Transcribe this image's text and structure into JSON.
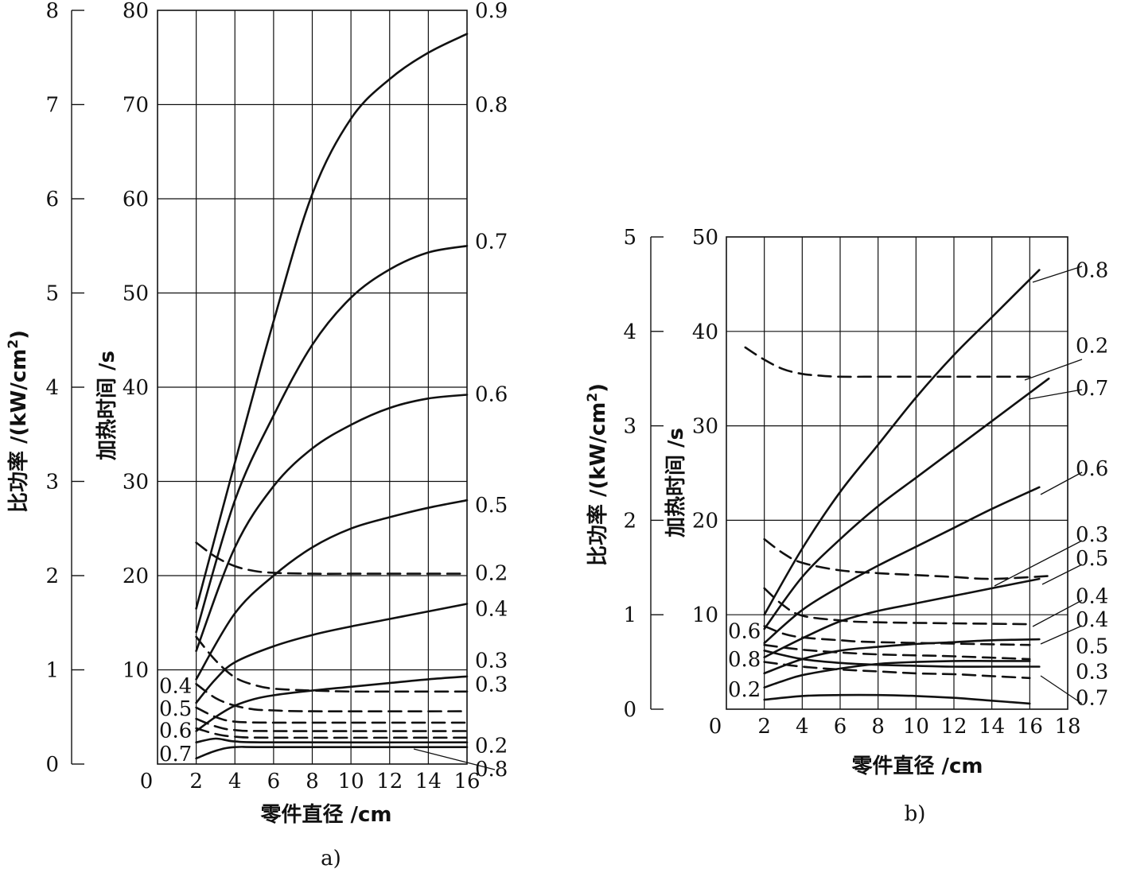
{
  "chart_data": [
    {
      "type": "line",
      "caption": "a)",
      "xlabel": "零件直径 /cm",
      "ylabel_outer": "比功率 /(kW/cm",
      "ylabel_outer_sup": "2",
      "ylabel_outer_close": ")",
      "ylabel_inner": "加热时间 /s",
      "x_origin_label": "0",
      "x_ticks": [
        2,
        4,
        6,
        8,
        10,
        12,
        14,
        16
      ],
      "xlim": [
        0,
        16
      ],
      "y_outer_ticks": [
        0,
        1,
        2,
        3,
        4,
        5,
        6,
        7,
        8
      ],
      "y_outer_lim": [
        0,
        8
      ],
      "y_inner_ticks": [
        10,
        20,
        30,
        40,
        50,
        60,
        70,
        80
      ],
      "y_inner_lim": [
        0,
        80
      ],
      "grid": true,
      "series": [
        {
          "name": "0.8",
          "style": "solid",
          "x": [
            2,
            4,
            6,
            8,
            10,
            12,
            14,
            16
          ],
          "y": [
            16.5,
            32,
            47,
            60.5,
            68.5,
            72.7,
            75.5,
            77.5
          ]
        },
        {
          "name": "0.7",
          "style": "solid",
          "x": [
            2,
            4,
            6,
            8,
            10,
            12,
            14,
            16
          ],
          "y": [
            14,
            28,
            37,
            44.5,
            49.5,
            52.5,
            54.3,
            55
          ]
        },
        {
          "name": "0.6",
          "style": "solid",
          "x": [
            2,
            4,
            6,
            8,
            10,
            12,
            14,
            16
          ],
          "y": [
            12,
            23,
            29.5,
            33.5,
            36,
            37.8,
            38.8,
            39.2
          ]
        },
        {
          "name": "0.5",
          "style": "solid",
          "x": [
            2,
            4,
            6,
            8,
            10,
            12,
            14,
            16
          ],
          "y": [
            9,
            16,
            20,
            23,
            25,
            26.2,
            27.2,
            28
          ]
        },
        {
          "name": "0.2",
          "style": "dashed",
          "x": [
            2,
            3,
            4,
            5,
            6,
            8,
            10,
            12,
            14,
            16
          ],
          "y": [
            23.5,
            22,
            21,
            20.5,
            20.3,
            20.2,
            20.2,
            20.2,
            20.2,
            20.2
          ]
        },
        {
          "name": "0.4",
          "style": "solid",
          "x": [
            2,
            3,
            4,
            6,
            8,
            10,
            12,
            14,
            16
          ],
          "y": [
            6.5,
            9,
            10.8,
            12.5,
            13.7,
            14.6,
            15.4,
            16.2,
            17
          ]
        },
        {
          "name": "0.3",
          "style": "dashed",
          "x": [
            2,
            3,
            4,
            5,
            6,
            8,
            10,
            12,
            14,
            16
          ],
          "y": [
            13.5,
            11,
            9.2,
            8.4,
            8,
            7.8,
            7.7,
            7.7,
            7.7,
            7.7
          ]
        },
        {
          "name": "0.3",
          "style": "solid",
          "x": [
            2,
            3,
            4,
            5,
            6,
            8,
            10,
            12,
            14,
            16
          ],
          "y": [
            3.5,
            5,
            6.2,
            6.9,
            7.3,
            7.8,
            8.2,
            8.6,
            9,
            9.3
          ]
        },
        {
          "name": "0.4",
          "style": "dashed",
          "x": [
            2,
            3,
            4,
            5,
            6,
            8,
            16
          ],
          "y": [
            8.5,
            7,
            6.2,
            5.8,
            5.7,
            5.6,
            5.6
          ]
        },
        {
          "name": "0.5",
          "style": "dashed",
          "x": [
            2,
            3,
            4,
            6,
            8,
            16
          ],
          "y": [
            6,
            5,
            4.5,
            4.4,
            4.4,
            4.4
          ]
        },
        {
          "name": "0.6",
          "style": "dashed",
          "x": [
            2,
            3,
            4,
            6,
            16
          ],
          "y": [
            4.8,
            4,
            3.6,
            3.5,
            3.5
          ]
        },
        {
          "name": "0.7",
          "style": "dashed",
          "x": [
            2,
            3,
            4,
            6,
            16
          ],
          "y": [
            3.8,
            3.2,
            2.9,
            2.8,
            2.8
          ]
        },
        {
          "name": "0.2",
          "style": "solid",
          "x": [
            2,
            3,
            4,
            6,
            16
          ],
          "y": [
            2.3,
            2.7,
            2.4,
            2.3,
            2.3
          ]
        },
        {
          "name": "0.8",
          "style": "solid",
          "x": [
            2,
            3,
            4,
            6,
            16
          ],
          "y": [
            0.6,
            1.4,
            1.8,
            1.8,
            1.8
          ]
        }
      ],
      "right_labels": [
        {
          "text": "0.9",
          "yv": 80
        },
        {
          "text": "0.8",
          "yv": 70
        },
        {
          "text": "0.7",
          "yv": 55.5
        },
        {
          "text": "0.6",
          "yv": 39.3
        },
        {
          "text": "0.5",
          "yv": 27.5
        },
        {
          "text": "0.2",
          "yv": 20.3
        },
        {
          "text": "0.4",
          "yv": 16.5
        },
        {
          "text": "0.3",
          "yv": 11
        },
        {
          "text": "0.3",
          "yv": 8.5
        },
        {
          "text": "0.2",
          "yv": 2
        },
        {
          "text": "0.8",
          "yv": -0.5
        }
      ],
      "left_labels": [
        {
          "text": "0.4",
          "yv": 8.3
        },
        {
          "text": "0.5",
          "yv": 5.9
        },
        {
          "text": "0.6",
          "yv": 3.6
        },
        {
          "text": "0.7",
          "yv": 1.1
        }
      ]
    },
    {
      "type": "line",
      "caption": "b)",
      "xlabel": "零件直径 /cm",
      "ylabel_outer": "比功率 /(kW/cm",
      "ylabel_outer_sup": "2",
      "ylabel_outer_close": ")",
      "ylabel_inner": "加热时间 /s",
      "x_origin_label": "0",
      "x_ticks": [
        2,
        4,
        6,
        8,
        10,
        12,
        14,
        16,
        18
      ],
      "xlim": [
        0,
        18
      ],
      "y_outer_ticks": [
        0,
        1,
        2,
        3,
        4,
        5
      ],
      "y_outer_lim": [
        0,
        5
      ],
      "y_inner_ticks": [
        10,
        20,
        30,
        40,
        50
      ],
      "y_inner_lim": [
        0,
        50
      ],
      "grid": true,
      "series": [
        {
          "name": "0.8",
          "style": "solid",
          "x": [
            2,
            4,
            6,
            8,
            10,
            12,
            14,
            16.5
          ],
          "y": [
            10,
            17,
            23,
            28,
            33,
            37.5,
            41.5,
            46.5
          ]
        },
        {
          "name": "0.2",
          "style": "dashed",
          "x": [
            1,
            2,
            3,
            4,
            5,
            6,
            8,
            10,
            12,
            14,
            16
          ],
          "y": [
            38.3,
            37,
            36,
            35.5,
            35.3,
            35.2,
            35.2,
            35.2,
            35.2,
            35.2,
            35.2
          ]
        },
        {
          "name": "0.7",
          "style": "solid",
          "x": [
            2,
            4,
            6,
            8,
            10,
            12,
            14,
            17
          ],
          "y": [
            8.5,
            14,
            18,
            21.5,
            24.5,
            27.5,
            30.5,
            35
          ]
        },
        {
          "name": "0.6",
          "style": "solid",
          "x": [
            2,
            4,
            6,
            8,
            10,
            12,
            14,
            16.5
          ],
          "y": [
            7,
            10.5,
            13,
            15.2,
            17.2,
            19.2,
            21.2,
            23.5
          ]
        },
        {
          "name": "0.3",
          "style": "dashed",
          "x": [
            2,
            3,
            4,
            6,
            8,
            10,
            12,
            14,
            17
          ],
          "y": [
            18,
            16.5,
            15.5,
            14.7,
            14.4,
            14.2,
            14,
            13.8,
            14.1
          ]
        },
        {
          "name": "0.5",
          "style": "solid",
          "x": [
            2,
            4,
            6,
            8,
            10,
            12,
            14,
            16.5
          ],
          "y": [
            5.5,
            7.5,
            9.3,
            10.4,
            11.2,
            12,
            12.8,
            13.8
          ]
        },
        {
          "name": "0.4",
          "style": "dashed",
          "x": [
            2,
            3,
            4,
            6,
            8,
            16
          ],
          "y": [
            12.8,
            11,
            9.9,
            9.4,
            9.2,
            9
          ]
        },
        {
          "name": "0.4",
          "style": "solid",
          "x": [
            2,
            4,
            6,
            8,
            10,
            12,
            14,
            16.5
          ],
          "y": [
            3.8,
            5.3,
            6.2,
            6.6,
            6.9,
            7.1,
            7.3,
            7.4
          ]
        },
        {
          "name": "0.5",
          "style": "dashed",
          "x": [
            2,
            3,
            4,
            6,
            8,
            16
          ],
          "y": [
            8.8,
            8,
            7.6,
            7.3,
            7.1,
            6.8
          ]
        },
        {
          "name": "0.6",
          "style": "dashed",
          "x": [
            2,
            4,
            6,
            8,
            10,
            12,
            16
          ],
          "y": [
            6.8,
            6.3,
            6,
            5.8,
            5.7,
            5.6,
            5.3
          ]
        },
        {
          "name": "0.3",
          "style": "solid",
          "x": [
            2,
            4,
            6,
            8,
            10,
            12,
            14,
            16.5
          ],
          "y": [
            6.2,
            5.3,
            4.9,
            4.7,
            4.6,
            4.5,
            4.5,
            4.5
          ]
        },
        {
          "name": "0.7",
          "style": "dashed",
          "x": [
            2,
            4,
            6,
            8,
            10,
            12,
            14,
            16
          ],
          "y": [
            5,
            4.5,
            4.2,
            4,
            3.8,
            3.7,
            3.5,
            3.3
          ]
        },
        {
          "name": "0.8",
          "style": "solid",
          "x": [
            2,
            3,
            4,
            6,
            8,
            10,
            12,
            14,
            16
          ],
          "y": [
            2.3,
            3,
            3.6,
            4.3,
            4.8,
            5,
            5.1,
            5.1,
            5.1
          ]
        },
        {
          "name": "0.2",
          "style": "solid",
          "x": [
            2,
            4,
            6,
            8,
            10,
            12,
            14,
            16
          ],
          "y": [
            1,
            1.4,
            1.5,
            1.5,
            1.4,
            1.2,
            0.9,
            0.6
          ]
        }
      ],
      "right_labels": [
        {
          "text": "0.8",
          "yv": 46.5
        },
        {
          "text": "0.2",
          "yv": 38.5
        },
        {
          "text": "0.7",
          "yv": 34
        },
        {
          "text": "0.6",
          "yv": 25.5
        },
        {
          "text": "0.3",
          "yv": 18.5
        },
        {
          "text": "0.5",
          "yv": 16
        },
        {
          "text": "0.4",
          "yv": 12
        },
        {
          "text": "0.4",
          "yv": 9.5
        },
        {
          "text": "0.5",
          "yv": 6.7
        },
        {
          "text": "0.3",
          "yv": 4
        },
        {
          "text": "0.7",
          "yv": 1.2
        }
      ],
      "left_labels": [
        {
          "text": "0.6",
          "yv": 8.3
        },
        {
          "text": "0.8",
          "yv": 5.3
        },
        {
          "text": "0.2",
          "yv": 2.1
        }
      ]
    }
  ]
}
